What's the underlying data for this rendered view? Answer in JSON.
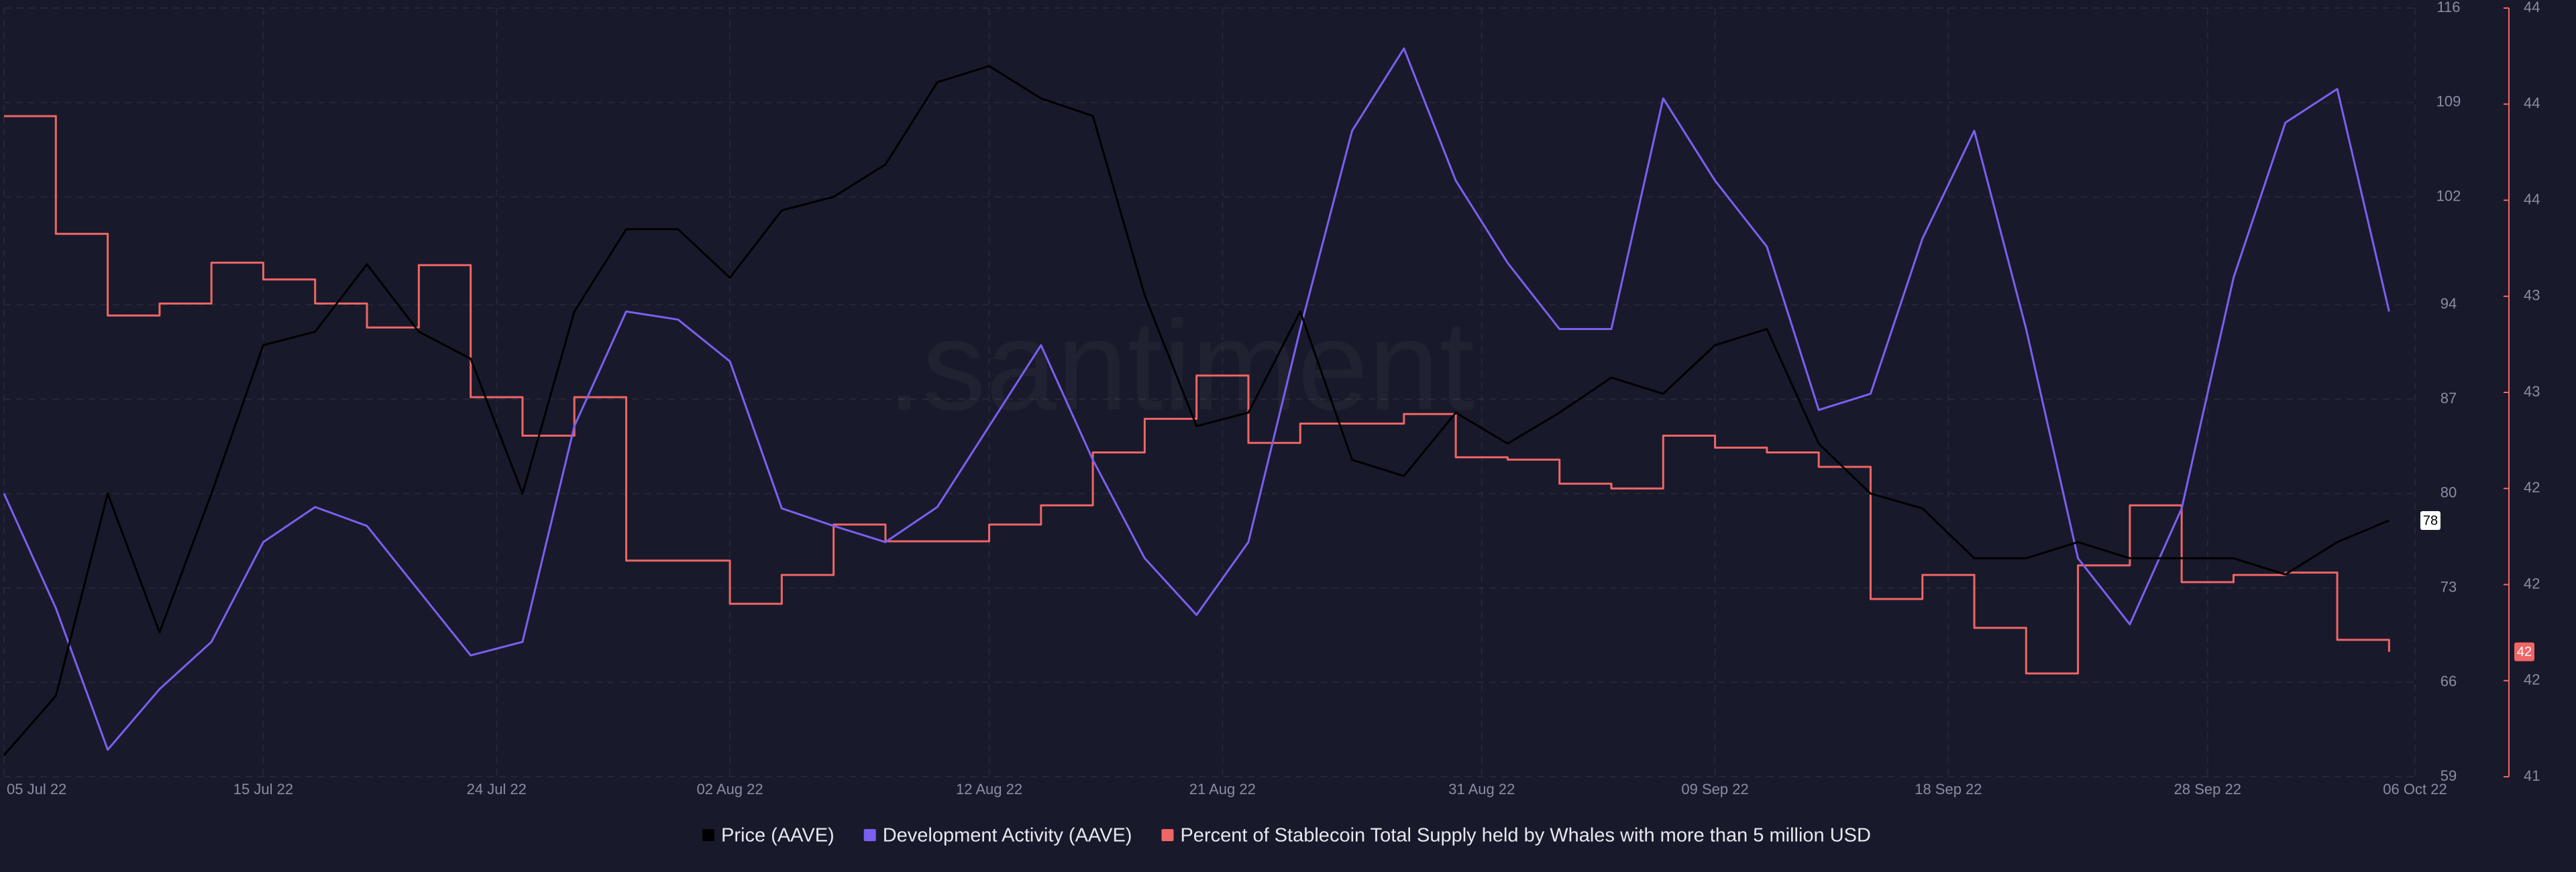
{
  "chart_data": {
    "type": "line",
    "watermark": ".santiment",
    "x": [
      "05 Jul 22",
      "07 Jul 22",
      "09 Jul 22",
      "11 Jul 22",
      "13 Jul 22",
      "15 Jul 22",
      "17 Jul 22",
      "19 Jul 22",
      "21 Jul 22",
      "23 Jul 22",
      "25 Jul 22",
      "27 Jul 22",
      "29 Jul 22",
      "31 Jul 22",
      "02 Aug 22",
      "04 Aug 22",
      "06 Aug 22",
      "08 Aug 22",
      "10 Aug 22",
      "12 Aug 22",
      "14 Aug 22",
      "16 Aug 22",
      "18 Aug 22",
      "20 Aug 22",
      "22 Aug 22",
      "24 Aug 22",
      "26 Aug 22",
      "28 Aug 22",
      "30 Aug 22",
      "01 Sep 22",
      "03 Sep 22",
      "05 Sep 22",
      "07 Sep 22",
      "09 Sep 22",
      "11 Sep 22",
      "13 Sep 22",
      "15 Sep 22",
      "17 Sep 22",
      "19 Sep 22",
      "21 Sep 22",
      "23 Sep 22",
      "25 Sep 22",
      "27 Sep 22",
      "29 Sep 22",
      "01 Oct 22",
      "03 Oct 22",
      "05 Oct 22"
    ],
    "xlim": [
      "05 Jul 22",
      "06 Oct 22"
    ],
    "xticks": [
      "05 Jul 22",
      "15 Jul 22",
      "24 Jul 22",
      "02 Aug 22",
      "12 Aug 22",
      "21 Aug 22",
      "31 Aug 22",
      "09 Sep 22",
      "18 Sep 22",
      "28 Sep 22",
      "06 Oct 22"
    ],
    "ylim": [
      59,
      116
    ],
    "yticks": [
      59,
      66,
      73,
      80,
      87,
      94,
      102,
      109,
      116
    ],
    "y2lim": [
      41.2,
      44.4
    ],
    "y2ticks": [
      {
        "value": 41.2,
        "label": "41"
      },
      {
        "value": 41.6,
        "label": "42"
      },
      {
        "value": 42.0,
        "label": "42"
      },
      {
        "value": 42.4,
        "label": "42"
      },
      {
        "value": 42.8,
        "label": "43"
      },
      {
        "value": 43.2,
        "label": "43"
      },
      {
        "value": 43.6,
        "label": "44"
      },
      {
        "value": 44.0,
        "label": "44"
      },
      {
        "value": 44.4,
        "label": "44"
      }
    ],
    "grid": true,
    "series": [
      {
        "name": "Price (AAVE)",
        "color": "#000000",
        "values": [
          60.6,
          65,
          80,
          69.7,
          80,
          91,
          92,
          97,
          92,
          90,
          80,
          93.5,
          99.6,
          99.6,
          96,
          101,
          102,
          104.4,
          110.5,
          111.7,
          109.3,
          108,
          94.7,
          85,
          86,
          93.5,
          82.5,
          81.3,
          86,
          83.7,
          86,
          88.6,
          87.4,
          91,
          92.2,
          83.7,
          80,
          78.9,
          75.2,
          75.2,
          76.4,
          75.2,
          75.2,
          75.2,
          74,
          76.4,
          78
        ]
      },
      {
        "name": "Development Activity (AAVE)",
        "color": "#7b5ff0",
        "values": [
          80,
          71.5,
          61,
          65.5,
          69,
          76.4,
          79,
          77.6,
          72.8,
          68,
          69,
          85,
          93.5,
          92.9,
          89.8,
          78.9,
          77.6,
          76.4,
          79,
          85,
          91,
          82.5,
          75.2,
          71,
          76.4,
          92.2,
          106.9,
          113,
          103.2,
          97.1,
          92.2,
          92.2,
          109.3,
          103.2,
          98.3,
          86.2,
          87.4,
          98.9,
          106.9,
          92.2,
          75.2,
          70.3,
          78.9,
          96,
          107.5,
          110,
          93.5
        ]
      },
      {
        "name": "Percent of Stablecoin Total Supply held by Whales with more than 5 million USD",
        "color": "#f06565",
        "axis": "y2",
        "step": true,
        "values": [
          43.95,
          43.46,
          43.12,
          43.17,
          43.34,
          43.27,
          43.17,
          43.07,
          43.33,
          42.78,
          42.62,
          42.78,
          42.1,
          42.1,
          41.92,
          42.04,
          42.25,
          42.18,
          42.18,
          42.25,
          42.33,
          42.55,
          42.69,
          42.87,
          42.59,
          42.67,
          42.67,
          42.71,
          42.53,
          42.52,
          42.42,
          42.4,
          42.62,
          42.57,
          42.55,
          42.49,
          41.94,
          42.04,
          41.82,
          41.63,
          42.08,
          42.33,
          42.01,
          42.04,
          42.05,
          41.77,
          41.72
        ],
        "value_labels": [
          null,
          null,
          null,
          null,
          null,
          null,
          null,
          null,
          null,
          null,
          null,
          null,
          null,
          null,
          null,
          null,
          null,
          null,
          null,
          null,
          null,
          null,
          null,
          null,
          null,
          null,
          null,
          null,
          null,
          null,
          null,
          null,
          null,
          null,
          null,
          null,
          null,
          null,
          null,
          null,
          null,
          null,
          null,
          null,
          null,
          null,
          "42"
        ]
      }
    ]
  }
}
